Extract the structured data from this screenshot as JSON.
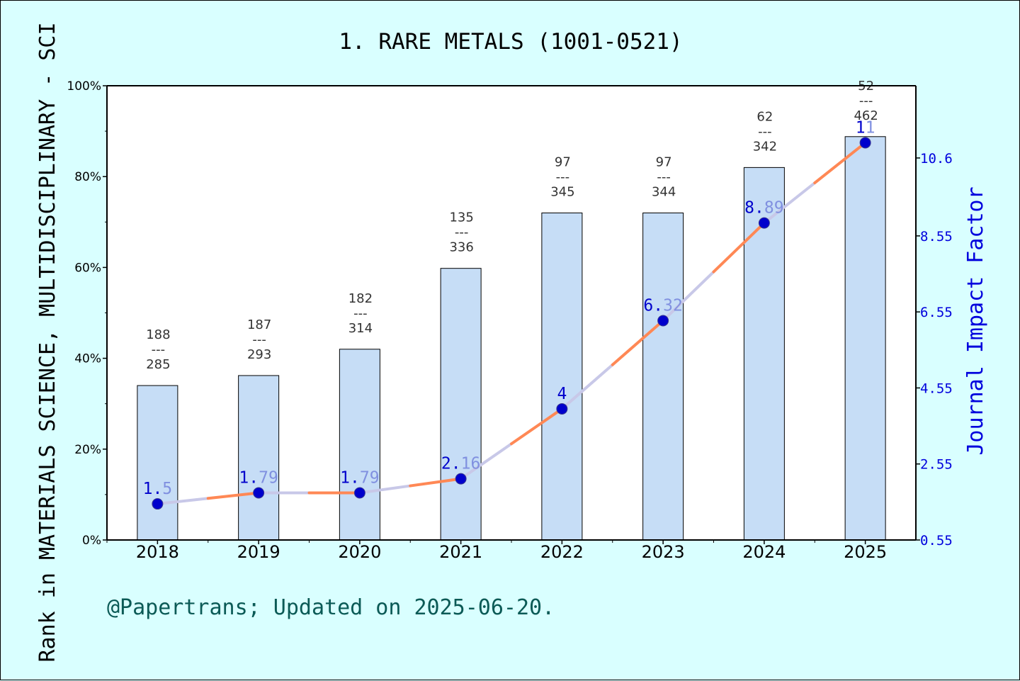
{
  "chart_data": {
    "type": "bar",
    "title": "1. RARE METALS (1001-0521)",
    "ylabel": "Rank in MATERIALS SCIENCE, MULTIDISCIPLINARY - SCI",
    "y2label": "Journal Impact Factor",
    "categories": [
      "2018",
      "2019",
      "2020",
      "2021",
      "2022",
      "2023",
      "2024",
      "2025"
    ],
    "ylim": [
      0,
      100
    ],
    "y_ticks": [
      "0%",
      "20%",
      "40%",
      "60%",
      "80%",
      "100%"
    ],
    "y2lim": [
      0.55,
      12.5
    ],
    "y2_ticks": [
      "0.55",
      "2.55",
      "4.55",
      "6.55",
      "8.55",
      "10.6"
    ],
    "series": [
      {
        "values": [
          34.0,
          36.2,
          42.0,
          59.8,
          72.0,
          72.0,
          82.0,
          88.8
        ],
        "rank": [
          "188",
          "187",
          "182",
          "135",
          "97",
          "97",
          "62",
          "52"
        ],
        "total": [
          "285",
          "293",
          "314",
          "336",
          "345",
          "344",
          "342",
          "462"
        ],
        "color": "#c6ddf6"
      },
      {
        "values": [
          1.5,
          1.79,
          1.79,
          2.16,
          4,
          6.32,
          8.89,
          11
        ],
        "labels": [
          "1.5",
          "1.79",
          "1.79",
          "2.16",
          "4",
          "6.32",
          "8.89",
          "11"
        ],
        "color": "#ff8855"
      }
    ],
    "grid": false,
    "legend": "none"
  },
  "footer": "@Papertrans; Updated on 2025-06-20."
}
